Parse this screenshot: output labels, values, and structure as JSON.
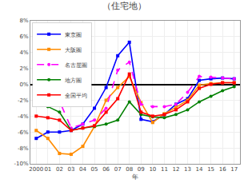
{
  "chart_data": {
    "type": "line",
    "title": "（住宅地）",
    "xlabel": "年",
    "categories": [
      "2000",
      "01",
      "02",
      "03",
      "04",
      "05",
      "06",
      "07",
      "08",
      "09",
      "10",
      "11",
      "12",
      "13",
      "14",
      "15",
      "16",
      "17"
    ],
    "series": [
      {
        "name": "東京圏",
        "color": "#0000FF",
        "marker": "square",
        "line_style": "solid",
        "values": [
          -6.8,
          -6.0,
          -6.0,
          -5.8,
          -5.0,
          -3.0,
          -0.4,
          3.6,
          5.3,
          -4.4,
          -4.7,
          -3.8,
          -2.5,
          -1.8,
          0.5,
          0.7,
          0.8,
          0.7
        ]
      },
      {
        "name": "大阪圏",
        "color": "#FF8C00",
        "marker": "square",
        "line_style": "solid",
        "values": [
          -5.8,
          -6.8,
          -8.7,
          -8.8,
          -7.8,
          -5.3,
          -2.0,
          -0.4,
          1.0,
          -2.3,
          -4.8,
          -3.7,
          -2.9,
          -2.0,
          -0.1,
          0.1,
          0.2,
          0.2
        ]
      },
      {
        "name": "名古屋圏",
        "color": "#FF00FF",
        "marker": "circle",
        "line_style": "dashed",
        "values": [
          -1.8,
          -1.9,
          -2.1,
          -5.5,
          -5.0,
          -4.5,
          -3.0,
          1.8,
          2.8,
          -2.5,
          -2.8,
          -2.8,
          -2.5,
          -1.0,
          1.0,
          0.9,
          0.8,
          0.7
        ]
      },
      {
        "name": "地方圏",
        "color": "#008000",
        "marker": "circle",
        "line_style": "solid",
        "values": [
          -2.5,
          -2.8,
          -3.5,
          -5.8,
          -5.5,
          -5.3,
          -5.0,
          -4.5,
          -2.2,
          -3.8,
          -4.1,
          -4.2,
          -3.8,
          -3.2,
          -2.2,
          -1.5,
          -0.8,
          -0.3
        ]
      },
      {
        "name": "全国平均",
        "color": "#FF0000",
        "marker": "square",
        "line_style": "solid",
        "values": [
          -4.0,
          -4.2,
          -4.5,
          -5.8,
          -5.5,
          -5.2,
          -3.5,
          -1.8,
          1.3,
          -3.5,
          -4.0,
          -3.8,
          -3.2,
          -2.2,
          -0.5,
          0.0,
          0.2,
          0.2
        ]
      }
    ],
    "ylim": [
      -10,
      8
    ],
    "yticks": [
      {
        "value": -10,
        "label": "-10%"
      },
      {
        "value": -8,
        "label": "-8%"
      },
      {
        "value": -6,
        "label": "-6%"
      },
      {
        "value": -4,
        "label": "-4%"
      },
      {
        "value": -2,
        "label": "-2%"
      },
      {
        "value": 0,
        "label": "0%"
      },
      {
        "value": 2,
        "label": "2%"
      },
      {
        "value": 4,
        "label": "4%"
      },
      {
        "value": 6,
        "label": "6%"
      },
      {
        "value": 8,
        "label": "8%"
      }
    ],
    "grid": true,
    "legend": "upper left"
  }
}
